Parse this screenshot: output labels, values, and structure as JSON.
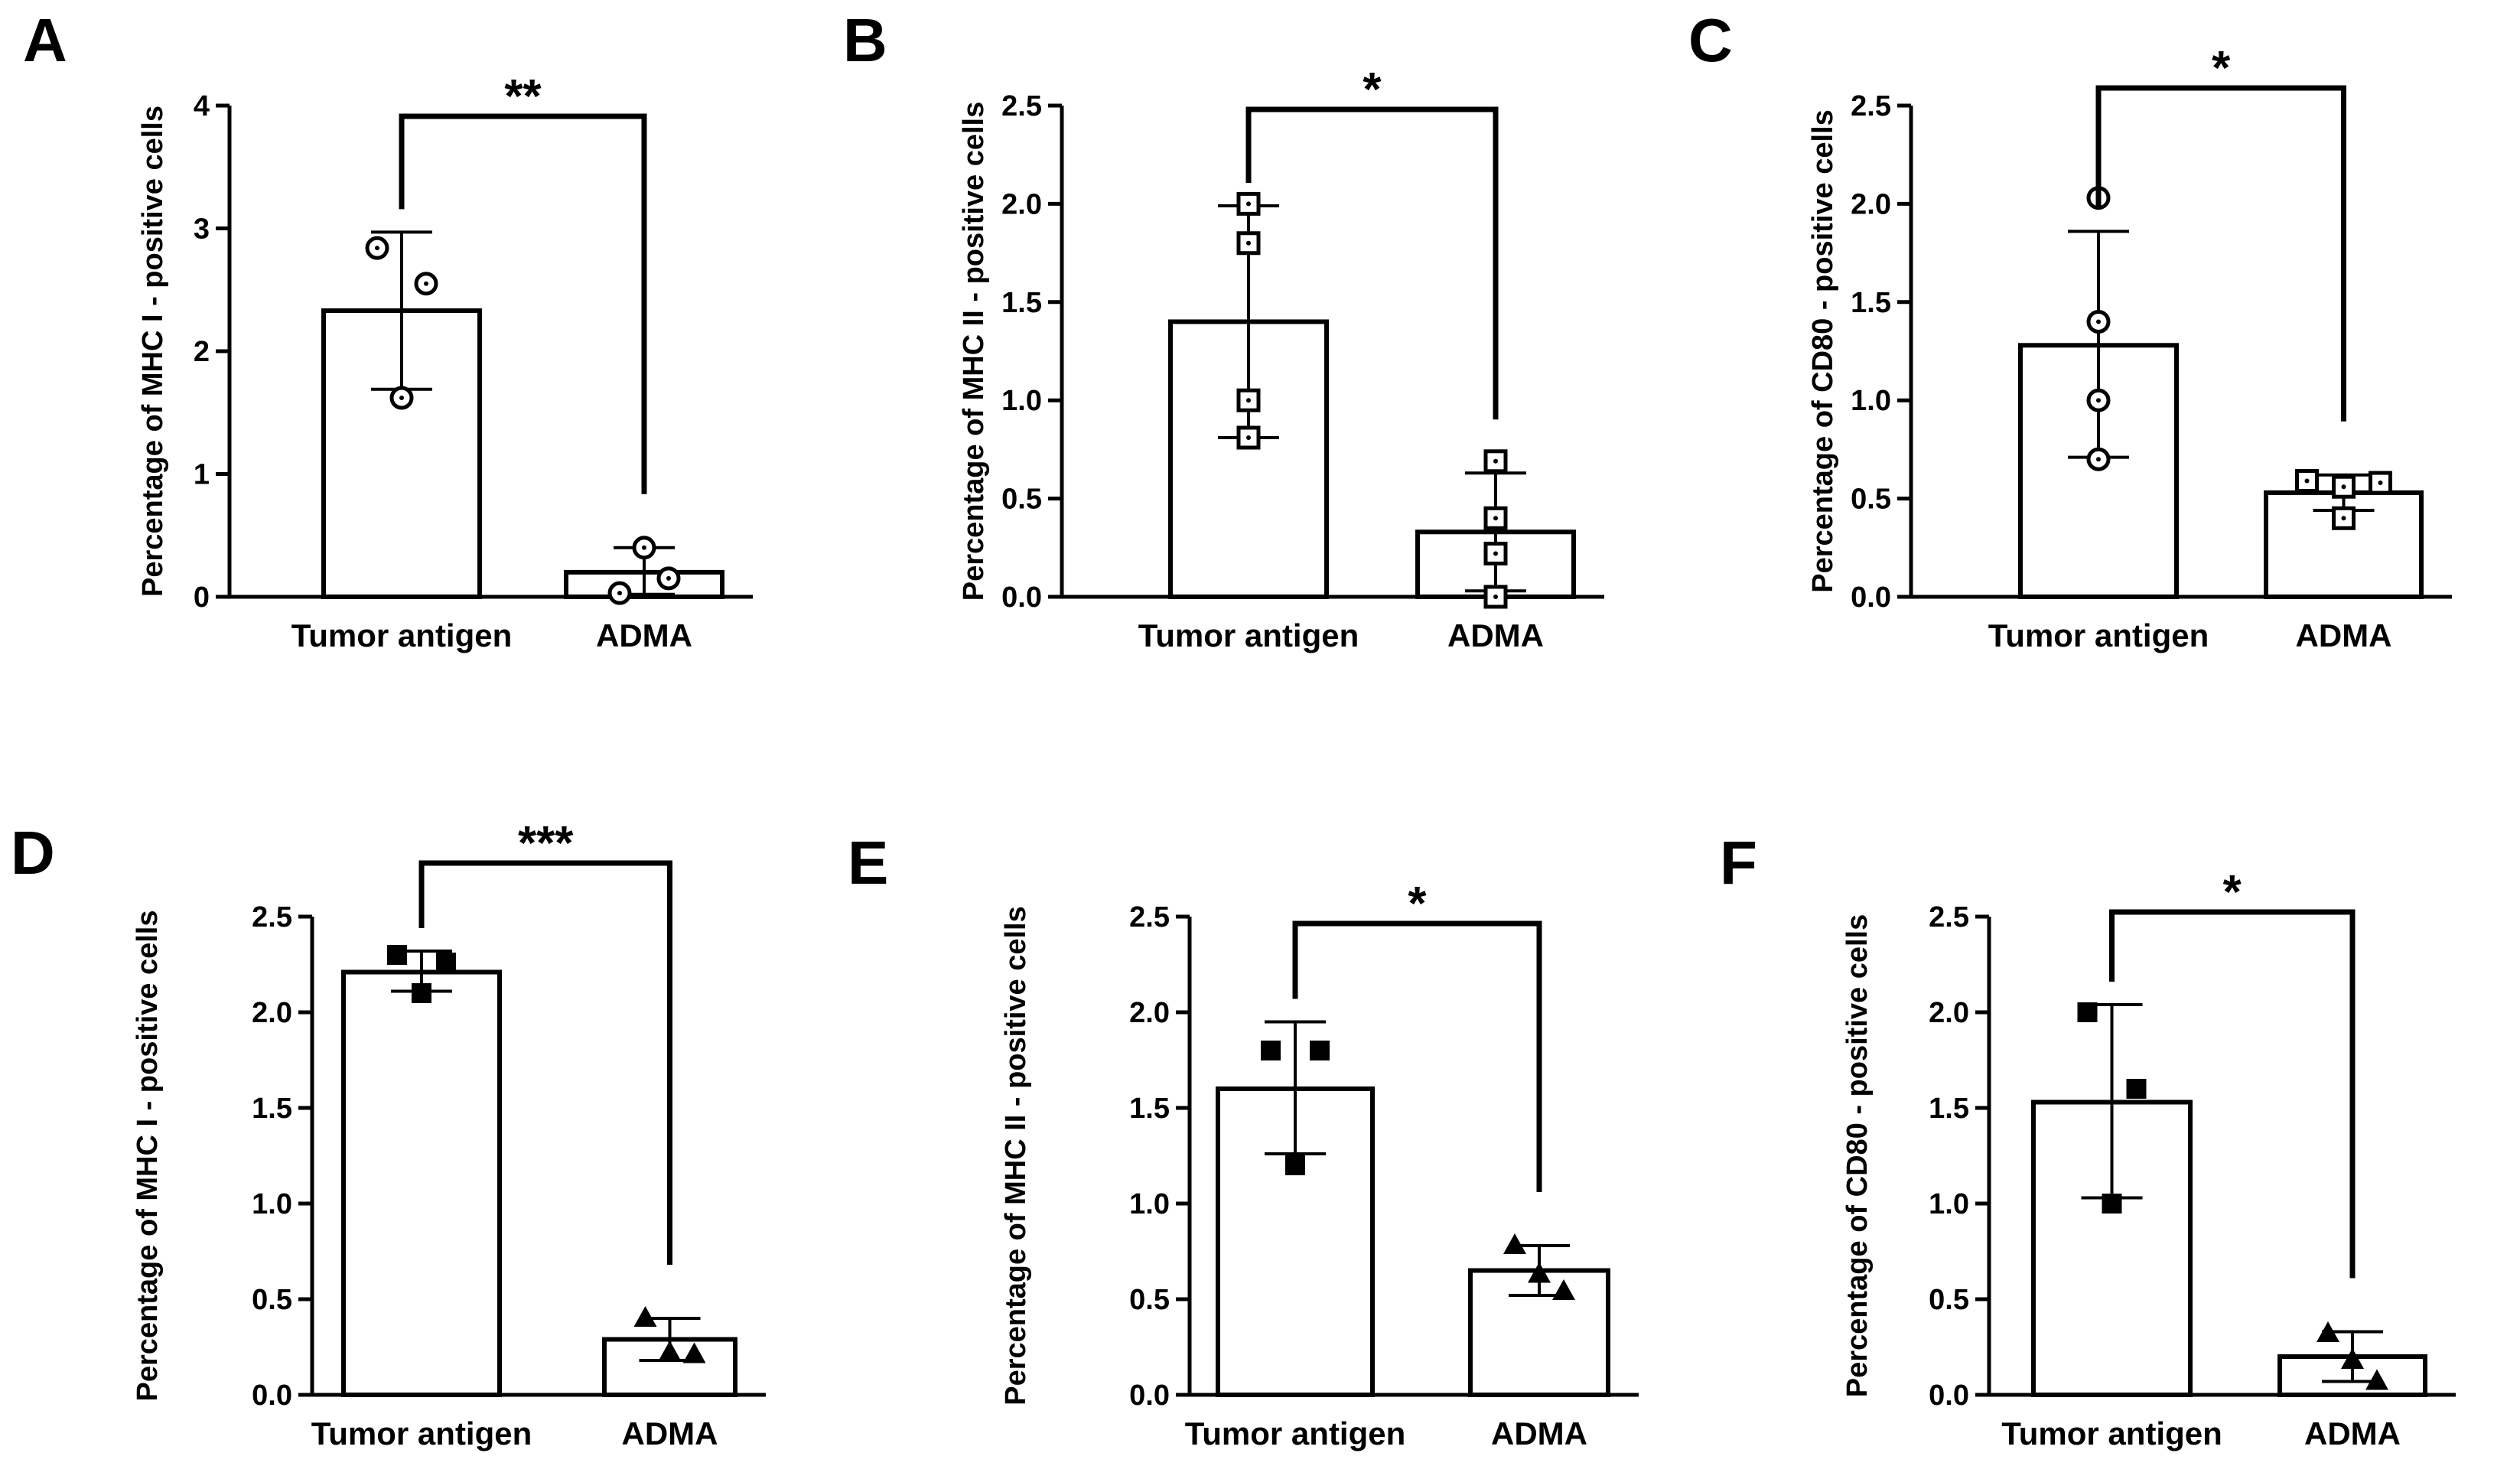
{
  "figure": {
    "background": "#ffffff",
    "ink": "#000000"
  },
  "chart_data": [
    {
      "panel": "A",
      "type": "bar",
      "marker": "open-circle",
      "ylabel": "Percentage of MHC I - positive cells",
      "ylim": [
        0,
        4
      ],
      "yticks": [
        "0",
        "1",
        "2",
        "3",
        "4"
      ],
      "ytick_values": [
        0,
        1,
        2,
        3,
        4
      ],
      "categories": [
        "Tumor antigen",
        "ADMA"
      ],
      "values": [
        2.33,
        0.2
      ],
      "error": [
        [
          1.69,
          2.97
        ],
        [
          0.02,
          0.4
        ]
      ],
      "points": [
        [
          2.84,
          2.55,
          1.62
        ],
        [
          0.03,
          0.15,
          0.4
        ]
      ],
      "significance": "**"
    },
    {
      "panel": "B",
      "type": "bar",
      "marker": "open-square",
      "ylabel": "Percentage of MHC II - positive cells",
      "ylim": [
        0,
        2.5
      ],
      "yticks": [
        "0.0",
        "0.5",
        "1.0",
        "1.5",
        "2.0",
        "2.5"
      ],
      "ytick_values": [
        0,
        0.5,
        1,
        1.5,
        2,
        2.5
      ],
      "categories": [
        "Tumor antigen",
        "ADMA"
      ],
      "values": [
        1.4,
        0.33
      ],
      "error": [
        [
          0.81,
          1.99
        ],
        [
          0.03,
          0.63
        ]
      ],
      "points": [
        [
          2.0,
          1.8,
          1.0,
          0.81
        ],
        [
          0.69,
          0.4,
          0.22,
          0.0
        ]
      ],
      "significance": "*"
    },
    {
      "panel": "C",
      "type": "bar",
      "marker": "open-square",
      "ylabel": "Percentage of CD80 - positive cells",
      "ylim": [
        0,
        2.5
      ],
      "yticks": [
        "0.0",
        "0.5",
        "1.0",
        "1.5",
        "2.0",
        "2.5"
      ],
      "ytick_values": [
        0,
        0.5,
        1,
        1.5,
        2,
        2.5
      ],
      "categories": [
        "Tumor antigen",
        "ADMA"
      ],
      "values": [
        1.28,
        0.53
      ],
      "error": [
        [
          0.71,
          1.86
        ],
        [
          0.44,
          0.62
        ]
      ],
      "points": [
        [
          2.03,
          1.4,
          1.0,
          0.7
        ],
        [
          0.59,
          0.56,
          0.58,
          0.4
        ]
      ],
      "point_markers": [
        "open-circle",
        "open-square"
      ],
      "significance": "*"
    },
    {
      "panel": "D",
      "type": "bar",
      "marker": "filled-square",
      "ylabel": "Percentage of MHC I - positive cells",
      "ylim": [
        0,
        2.5
      ],
      "yticks": [
        "0.0",
        "0.5",
        "1.0",
        "1.5",
        "2.0",
        "2.5"
      ],
      "ytick_values": [
        0,
        0.5,
        1,
        1.5,
        2,
        2.5
      ],
      "categories": [
        "Tumor antigen",
        "ADMA"
      ],
      "values": [
        2.21,
        0.29
      ],
      "error": [
        [
          2.11,
          2.32
        ],
        [
          0.18,
          0.4
        ]
      ],
      "points": [
        [
          2.3,
          2.26,
          2.1
        ],
        [
          0.4,
          0.21,
          0.22
        ]
      ],
      "point_markers": [
        "filled-square",
        "filled-triangle"
      ],
      "significance": "***"
    },
    {
      "panel": "E",
      "type": "bar",
      "marker": "filled-square",
      "ylabel": "Percentage of MHC II - positive cells",
      "ylim": [
        0,
        2.5
      ],
      "yticks": [
        "0.0",
        "0.5",
        "1.0",
        "1.5",
        "2.0",
        "2.5"
      ],
      "ytick_values": [
        0,
        0.5,
        1,
        1.5,
        2,
        2.5
      ],
      "categories": [
        "Tumor antigen",
        "ADMA"
      ],
      "values": [
        1.6,
        0.65
      ],
      "error": [
        [
          1.26,
          1.95
        ],
        [
          0.52,
          0.78
        ]
      ],
      "points": [
        [
          1.8,
          1.8,
          1.2
        ],
        [
          0.78,
          0.54,
          0.63
        ]
      ],
      "point_markers": [
        "filled-square",
        "filled-triangle"
      ],
      "significance": "*"
    },
    {
      "panel": "F",
      "type": "bar",
      "marker": "filled-square",
      "ylabel": "Percentage of CD80 - positive cells",
      "ylim": [
        0,
        2.5
      ],
      "yticks": [
        "0.0",
        "0.5",
        "1.0",
        "1.5",
        "2.0",
        "2.5"
      ],
      "ytick_values": [
        0,
        0.5,
        1,
        1.5,
        2,
        2.5
      ],
      "categories": [
        "Tumor antigen",
        "ADMA"
      ],
      "values": [
        1.53,
        0.2
      ],
      "error": [
        [
          1.03,
          2.04
        ],
        [
          0.07,
          0.33
        ]
      ],
      "points": [
        [
          2.0,
          1.6,
          1.0
        ],
        [
          0.32,
          0.07,
          0.18
        ]
      ],
      "point_markers": [
        "filled-square",
        "filled-triangle"
      ],
      "significance": "*"
    }
  ]
}
